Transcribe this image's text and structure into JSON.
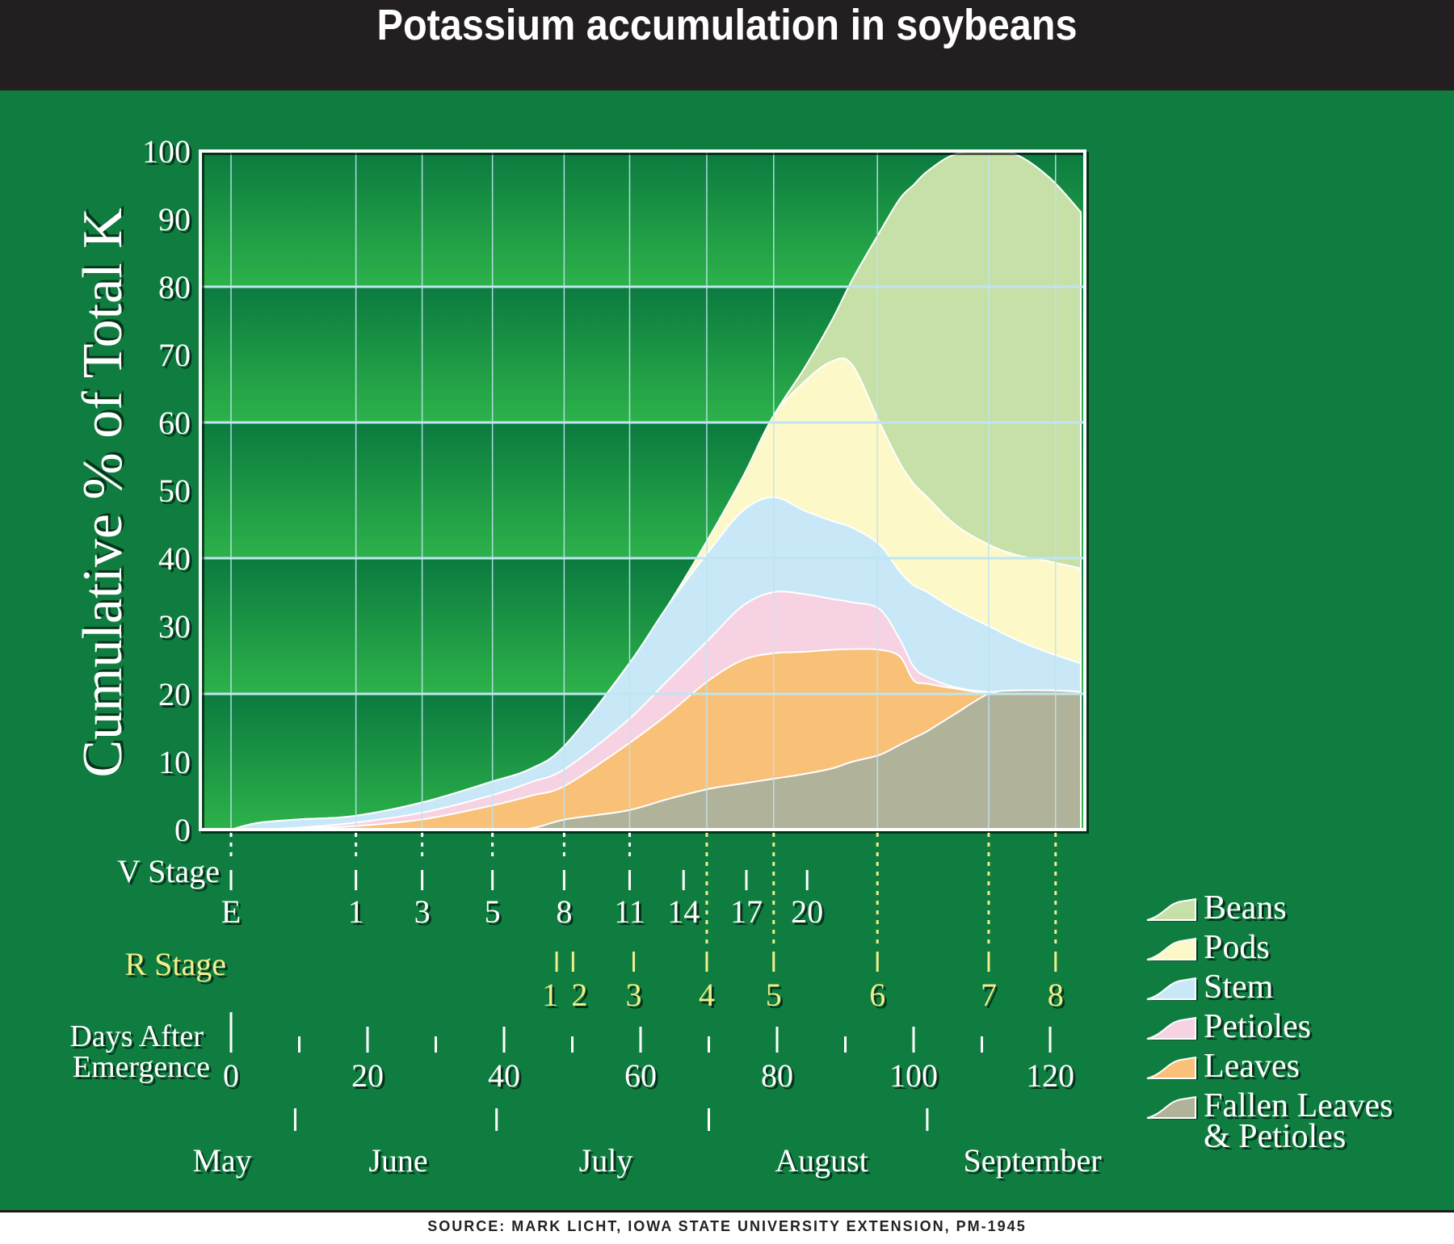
{
  "header": {
    "title": "Potassium accumulation in soybeans"
  },
  "source": "SOURCE: MARK LICHT, IOWA STATE UNIVERSITY EXTENSION, PM-1945",
  "colors": {
    "background": "#0f7d40",
    "header": "#231f20",
    "grid": "#bfe6f0",
    "r_stage": "#f3ee8c"
  },
  "chart_data": {
    "type": "area",
    "stacked": true,
    "title": "Potassium accumulation in soybeans",
    "ylabel": "Cumulative % of Total K",
    "xlabel": "Days After Emergence",
    "ylim": [
      0,
      100
    ],
    "xlim": [
      -4.5,
      125
    ],
    "yticks": [
      "0",
      "10",
      "20",
      "30",
      "40",
      "50",
      "60",
      "70",
      "80",
      "90",
      "100"
    ],
    "xticks": {
      "values": [
        0,
        20,
        40,
        60,
        80,
        100,
        120
      ],
      "labels": [
        "0",
        "20",
        "40",
        "60",
        "80",
        "100",
        "120"
      ],
      "minor": [
        10,
        30,
        50,
        70,
        90,
        110
      ]
    },
    "v_stage": {
      "label": "V Stage",
      "ticks": [
        {
          "label": "E",
          "day": 0
        },
        {
          "label": "1",
          "day": 18.3
        },
        {
          "label": "3",
          "day": 28
        },
        {
          "label": "5",
          "day": 38.3
        },
        {
          "label": "8",
          "day": 48.8
        },
        {
          "label": "11",
          "day": 58.4
        },
        {
          "label": "14",
          "day": 66.3
        },
        {
          "label": "17",
          "day": 75.5
        },
        {
          "label": "20",
          "day": 84.4
        }
      ]
    },
    "r_stage": {
      "label": "R Stage",
      "ticks": [
        {
          "label": "1",
          "day": 47.7
        },
        {
          "label": "2",
          "day": 50.1
        },
        {
          "label": "3",
          "day": 59
        },
        {
          "label": "4",
          "day": 69.7
        },
        {
          "label": "5",
          "day": 79.5
        },
        {
          "label": "6",
          "day": 94.7
        },
        {
          "label": "7",
          "day": 111
        },
        {
          "label": "8",
          "day": 120.8
        }
      ]
    },
    "months": {
      "labels": [
        "May",
        "June",
        "July",
        "August",
        "September"
      ],
      "boundaries_day": [
        9.4,
        38.9,
        70,
        102
      ]
    },
    "days_label": [
      "Days After",
      "Emergence"
    ],
    "x": [
      0,
      4,
      10,
      18,
      28,
      38,
      44,
      49,
      58,
      64,
      70,
      75,
      79.5,
      84,
      88,
      91,
      95,
      98,
      100,
      102,
      106,
      111,
      115,
      120,
      124.5
    ],
    "series": [
      {
        "name": "Fallen Leaves & Petioles",
        "label_lines": [
          "Fallen Leaves",
          "& Petioles"
        ],
        "color": "#b1b29a",
        "cumulative_top": [
          0,
          0,
          0,
          0,
          0,
          0,
          0.2,
          1.5,
          2.8,
          4.5,
          6,
          6.8,
          7.5,
          8.2,
          9,
          10,
          11,
          12.5,
          13.5,
          14.5,
          17,
          20,
          20.5,
          20.5,
          20.3
        ]
      },
      {
        "name": "Leaves",
        "color": "#f9c077",
        "cumulative_top": [
          0,
          0,
          0.2,
          0.5,
          1.5,
          3.5,
          5,
          6.5,
          12.5,
          17,
          22,
          25,
          26,
          26.2,
          26.5,
          26.6,
          26.5,
          25.5,
          22,
          21.5,
          20.8,
          20.1,
          20.5,
          20.5,
          20.3
        ]
      },
      {
        "name": "Petioles",
        "color": "#f7d2e3",
        "cumulative_top": [
          0,
          0,
          0.3,
          1,
          2.5,
          5,
          7,
          9,
          16,
          22,
          28,
          33,
          35,
          34.7,
          34,
          33.5,
          32.5,
          28,
          24,
          22.5,
          21,
          20.3,
          20.5,
          20.5,
          20.3
        ]
      },
      {
        "name": "Stem",
        "color": "#c8e8f7",
        "cumulative_top": [
          0,
          1,
          1.5,
          2,
          4,
          7,
          9,
          12.5,
          24,
          33,
          41,
          47,
          49,
          47,
          45.5,
          44.5,
          42,
          38,
          36,
          35,
          32.5,
          30,
          28,
          26,
          24.5
        ]
      },
      {
        "name": "Pods",
        "color": "#fcf8c8",
        "cumulative_top": [
          0,
          1,
          1.5,
          2,
          4,
          7,
          9,
          12.5,
          24,
          33,
          43,
          52,
          61,
          66,
          69,
          68.5,
          60,
          54,
          51,
          49,
          45,
          42,
          40.5,
          39.5,
          38.5
        ]
      },
      {
        "name": "Beans",
        "color": "#c6e0a8",
        "cumulative_top": [
          0,
          1,
          1.5,
          2,
          4,
          7,
          9,
          12.5,
          24,
          33,
          43,
          52,
          61,
          68,
          75,
          81,
          88,
          93,
          95,
          97,
          99.5,
          100,
          99.5,
          96,
          91
        ]
      }
    ],
    "legend": {
      "placement": "right",
      "order": [
        "Beans",
        "Pods",
        "Stem",
        "Petioles",
        "Leaves",
        "Fallen Leaves & Petioles"
      ]
    }
  }
}
